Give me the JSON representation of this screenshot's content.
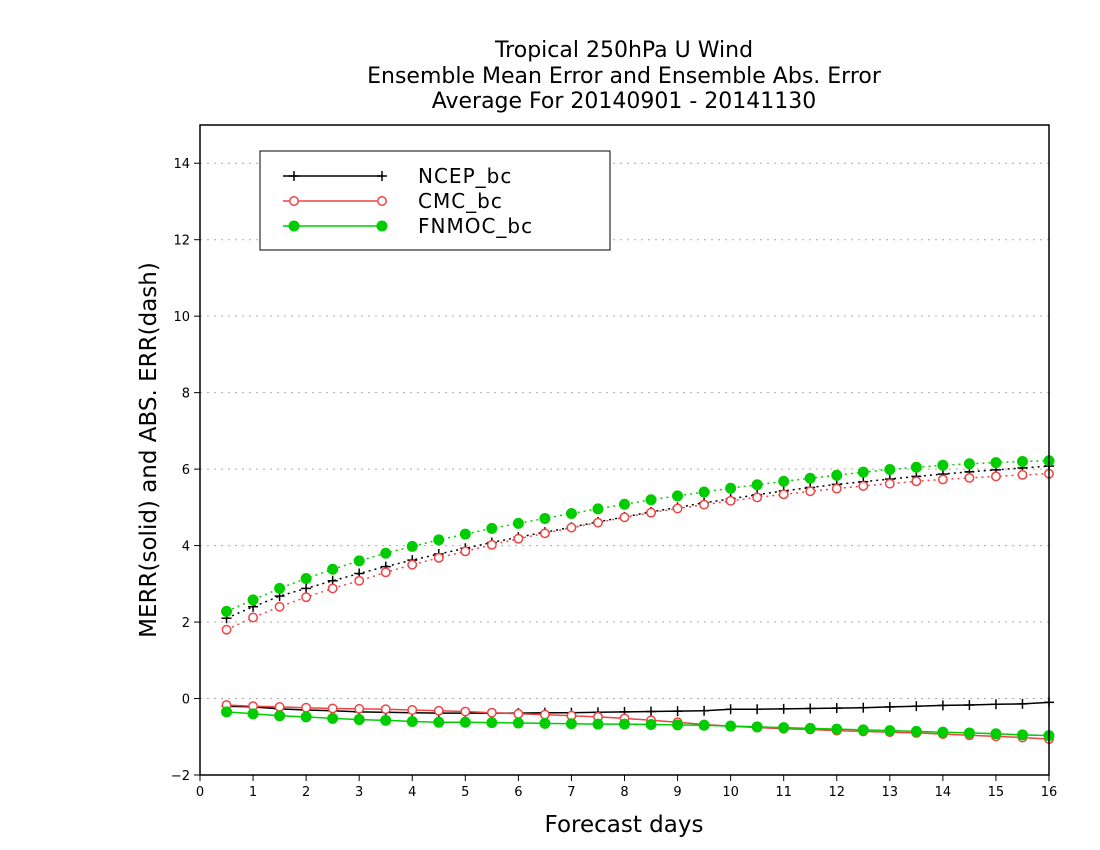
{
  "chart_data": {
    "type": "line",
    "title_lines": [
      "Tropical 250hPa U Wind",
      "Ensemble Mean Error and Ensemble Abs. Error",
      "Average For 20140901 - 20141130"
    ],
    "xlabel": "Forecast days",
    "ylabel": "MERR(solid) and ABS. ERR(dash)",
    "xlim": [
      0,
      16
    ],
    "ylim": [
      -2,
      15
    ],
    "x_ticks": [
      "0",
      "1",
      "2",
      "3",
      "4",
      "5",
      "6",
      "7",
      "8",
      "9",
      "10",
      "11",
      "12",
      "13",
      "14",
      "15",
      "16"
    ],
    "y_ticks": [
      "−2",
      "0",
      "2",
      "4",
      "6",
      "8",
      "10",
      "12",
      "14"
    ],
    "y_tick_values": [
      -2,
      0,
      2,
      4,
      6,
      8,
      10,
      12,
      14
    ],
    "grid": "horizontal dotted",
    "legend_position": "top-left",
    "x": [
      0.5,
      1,
      1.5,
      2,
      2.5,
      3,
      3.5,
      4,
      4.5,
      5,
      5.5,
      6,
      6.5,
      7,
      7.5,
      8,
      8.5,
      9,
      9.5,
      10,
      10.5,
      11,
      11.5,
      12,
      12.5,
      13,
      13.5,
      14,
      14.5,
      15,
      15.5,
      16
    ],
    "series": [
      {
        "name": "NCEP_bc",
        "color": "#000000",
        "marker": "plus",
        "merr": [
          -0.2,
          -0.22,
          -0.27,
          -0.3,
          -0.32,
          -0.35,
          -0.36,
          -0.37,
          -0.38,
          -0.38,
          -0.38,
          -0.38,
          -0.37,
          -0.37,
          -0.36,
          -0.35,
          -0.34,
          -0.33,
          -0.32,
          -0.28,
          -0.28,
          -0.27,
          -0.26,
          -0.25,
          -0.24,
          -0.22,
          -0.2,
          -0.18,
          -0.17,
          -0.15,
          -0.14,
          -0.1
        ],
        "abs_err": [
          2.1,
          2.4,
          2.68,
          2.88,
          3.08,
          3.27,
          3.45,
          3.62,
          3.78,
          3.93,
          4.08,
          4.22,
          4.35,
          4.48,
          4.62,
          4.75,
          4.88,
          5.0,
          5.12,
          5.22,
          5.33,
          5.43,
          5.52,
          5.6,
          5.67,
          5.74,
          5.81,
          5.87,
          5.93,
          5.98,
          6.03,
          6.08
        ]
      },
      {
        "name": "CMC_bc",
        "color": "#ee4444",
        "marker": "open-circle",
        "merr": [
          -0.17,
          -0.2,
          -0.22,
          -0.24,
          -0.26,
          -0.27,
          -0.28,
          -0.3,
          -0.32,
          -0.34,
          -0.37,
          -0.4,
          -0.42,
          -0.45,
          -0.48,
          -0.52,
          -0.57,
          -0.62,
          -0.68,
          -0.72,
          -0.76,
          -0.79,
          -0.81,
          -0.84,
          -0.86,
          -0.88,
          -0.9,
          -0.93,
          -0.96,
          -0.99,
          -1.02,
          -1.06
        ],
        "abs_err": [
          1.8,
          2.12,
          2.4,
          2.65,
          2.88,
          3.08,
          3.3,
          3.5,
          3.68,
          3.85,
          4.02,
          4.18,
          4.32,
          4.47,
          4.6,
          4.74,
          4.86,
          4.97,
          5.07,
          5.17,
          5.26,
          5.34,
          5.42,
          5.49,
          5.56,
          5.62,
          5.68,
          5.73,
          5.77,
          5.81,
          5.85,
          5.88
        ]
      },
      {
        "name": "FNMOC_bc",
        "color": "#00cc00",
        "marker": "filled-circle",
        "merr": [
          -0.35,
          -0.4,
          -0.45,
          -0.48,
          -0.52,
          -0.55,
          -0.57,
          -0.6,
          -0.62,
          -0.62,
          -0.63,
          -0.64,
          -0.65,
          -0.66,
          -0.67,
          -0.67,
          -0.68,
          -0.69,
          -0.7,
          -0.72,
          -0.74,
          -0.76,
          -0.78,
          -0.8,
          -0.82,
          -0.84,
          -0.86,
          -0.88,
          -0.9,
          -0.92,
          -0.95,
          -0.97
        ],
        "abs_err": [
          2.28,
          2.58,
          2.88,
          3.14,
          3.38,
          3.6,
          3.8,
          3.98,
          4.15,
          4.3,
          4.45,
          4.58,
          4.71,
          4.84,
          4.96,
          5.08,
          5.2,
          5.3,
          5.4,
          5.5,
          5.59,
          5.68,
          5.76,
          5.84,
          5.92,
          5.99,
          6.05,
          6.1,
          6.14,
          6.17,
          6.2,
          6.22
        ]
      }
    ]
  }
}
